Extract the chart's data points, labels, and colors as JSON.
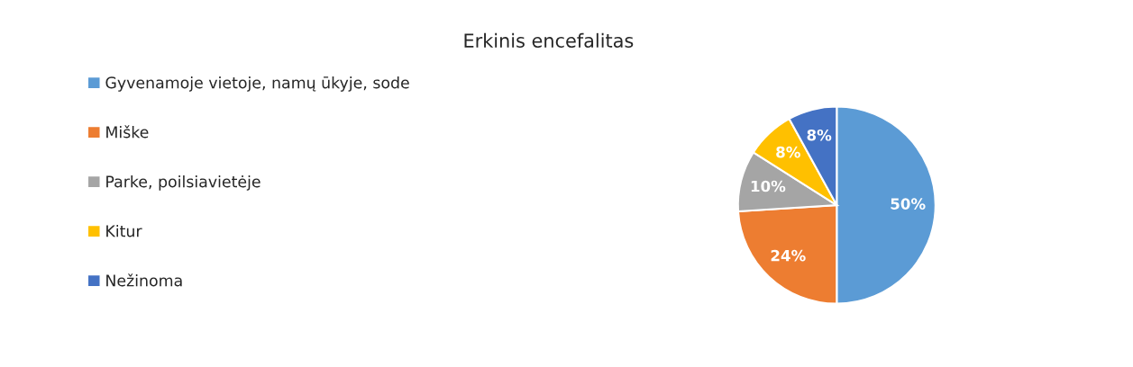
{
  "chart_data": {
    "type": "pie",
    "title": "Erkinis encefalitas",
    "categories": [
      "Gyvenamoje vietoje, namų ūkyje, sode",
      "Miške",
      "Parke, poilsiavietėje",
      "Kitur",
      "Nežinoma"
    ],
    "values": [
      50,
      24,
      10,
      8,
      8
    ],
    "colors": [
      "#5b9bd5",
      "#ed7d31",
      "#a5a5a5",
      "#ffc000",
      "#4472c4"
    ],
    "value_labels": [
      "50%",
      "24%",
      "10%",
      "8%",
      "8%"
    ],
    "legend": "left"
  }
}
